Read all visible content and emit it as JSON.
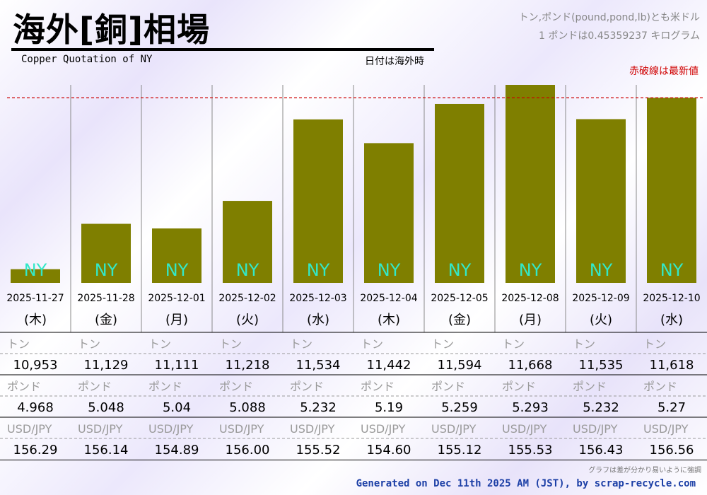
{
  "header": {
    "title": "海外[銅]相場",
    "subtitle": "Copper Quotation of NY",
    "date_note": "日付は海外時",
    "unit_note_1": "トン,ポンド(pound,pond,lb)とも米ドル",
    "unit_note_2": "1 ポンドは0.45359237 キログラム",
    "latest_note": "赤破線は最新値"
  },
  "footer": {
    "note": "グラフは差が分かり易いように強調",
    "generated": "Generated on Dec 11th 2025 AM (JST), by scrap-recycle.com"
  },
  "colors": {
    "bar": "#7f7f00",
    "bar_label": "#33e8c8",
    "latest_line": "#cc0000"
  },
  "chart_data": {
    "type": "bar",
    "bar_label": "NY",
    "categories": [
      "2025-11-27",
      "2025-11-28",
      "2025-12-01",
      "2025-12-02",
      "2025-12-03",
      "2025-12-04",
      "2025-12-05",
      "2025-12-08",
      "2025-12-09",
      "2025-12-10"
    ],
    "weekdays": [
      "(木)",
      "(金)",
      "(月)",
      "(火)",
      "(水)",
      "(木)",
      "(金)",
      "(月)",
      "(火)",
      "(水)"
    ],
    "row_labels": {
      "ton": "トン",
      "pound": "ポンド",
      "usdjpy": "USD/JPY"
    },
    "ton": [
      "10,953",
      "11,129",
      "11,111",
      "11,218",
      "11,534",
      "11,442",
      "11,594",
      "11,668",
      "11,535",
      "11,618"
    ],
    "pound": [
      "4.968",
      "5.048",
      "5.04",
      "5.088",
      "5.232",
      "5.19",
      "5.259",
      "5.293",
      "5.232",
      "5.27"
    ],
    "usdjpy": [
      "156.29",
      "156.14",
      "154.89",
      "156.00",
      "155.52",
      "154.60",
      "155.12",
      "155.53",
      "156.43",
      "156.56"
    ],
    "series": [
      {
        "values": [
          10953,
          11129,
          11111,
          11218,
          11534,
          11442,
          11594,
          11668,
          11535,
          11618
        ]
      }
    ],
    "latest_value": 11618,
    "ylim": [
      10900,
      11668
    ]
  }
}
